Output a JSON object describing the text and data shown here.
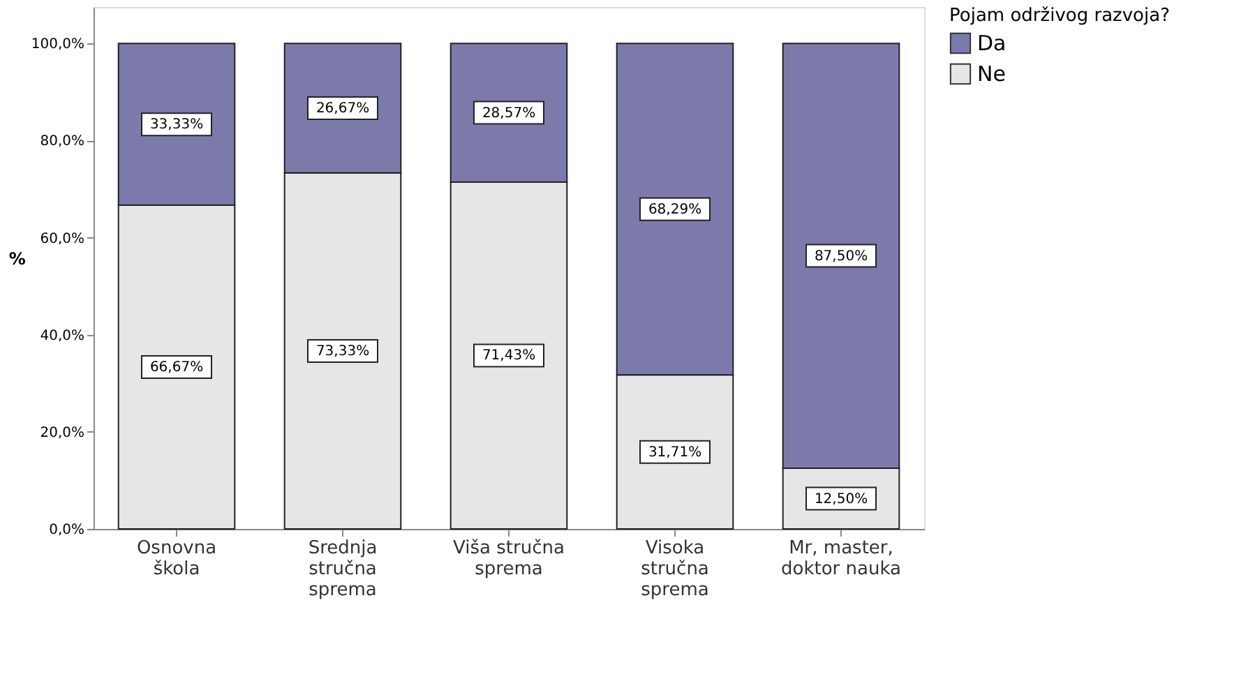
{
  "chart_data": {
    "type": "bar",
    "stacked": true,
    "ylabel": "%",
    "legend_title": "Pojam održivog razvoja?",
    "legend": "top right",
    "categories": [
      "Osnovna\nškola",
      "Srednja\nstručna\nsprema",
      "Viša stručna\nsprema",
      "Visoka\nstručna\nsprema",
      "Mr, master,\ndoktor nauka"
    ],
    "series": [
      {
        "name": "Ne",
        "color": "#e6e6e6",
        "values": [
          66.67,
          73.33,
          71.43,
          31.71,
          12.5
        ],
        "value_labels": [
          "66,67%",
          "73,33%",
          "71,43%",
          "31,71%",
          "12,50%"
        ]
      },
      {
        "name": "Da",
        "color": "#7b7aab",
        "values": [
          33.33,
          26.67,
          28.57,
          68.29,
          87.5
        ],
        "value_labels": [
          "33,33%",
          "26,67%",
          "28,57%",
          "68,29%",
          "87,50%"
        ]
      }
    ],
    "ylim": [
      0,
      107.5
    ],
    "yticks": [
      {
        "value": 0,
        "label": "0,0%"
      },
      {
        "value": 20,
        "label": "20,0%"
      },
      {
        "value": 40,
        "label": "40,0%"
      },
      {
        "value": 60,
        "label": "60,0%"
      },
      {
        "value": 80,
        "label": "80,0%"
      },
      {
        "value": 100,
        "label": "100,0%"
      }
    ],
    "grid": false
  }
}
